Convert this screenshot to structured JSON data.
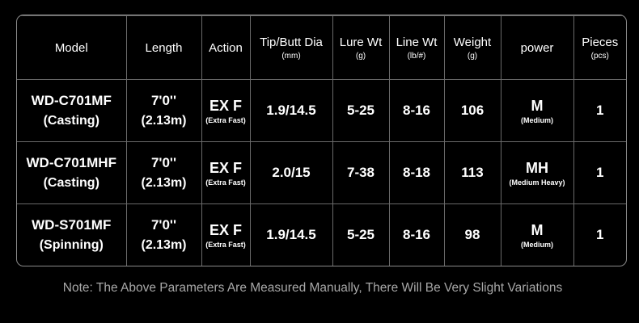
{
  "table": {
    "headers": [
      {
        "title": "Model"
      },
      {
        "title": "Length"
      },
      {
        "title": "Action"
      },
      {
        "title": "Tip/Butt Dia",
        "unit": "(mm)"
      },
      {
        "title": "Lure Wt",
        "unit": "(g)"
      },
      {
        "title": "Line Wt",
        "unit": "(lb/#)"
      },
      {
        "title": "Weight",
        "unit": "(g)"
      },
      {
        "title": "power"
      },
      {
        "title": "Pieces",
        "unit": "(pcs)"
      }
    ],
    "rows": [
      [
        {
          "text": "WD-C701MF",
          "sub": "(Casting)"
        },
        {
          "text": "7'0''",
          "sub": "(2.13m)"
        },
        {
          "text": "EX F",
          "sub": "(Extra Fast)"
        },
        {
          "text": "1.9/14.5"
        },
        {
          "text": "5-25"
        },
        {
          "text": "8-16"
        },
        {
          "text": "106"
        },
        {
          "text": "M",
          "sub": "(Medium)"
        },
        {
          "text": "1"
        }
      ],
      [
        {
          "text": "WD-C701MHF",
          "sub": "(Casting)"
        },
        {
          "text": "7'0''",
          "sub": "(2.13m)"
        },
        {
          "text": "EX F",
          "sub": "(Extra Fast)"
        },
        {
          "text": "2.0/15"
        },
        {
          "text": "7-38"
        },
        {
          "text": "8-18"
        },
        {
          "text": "113"
        },
        {
          "text": "MH",
          "sub": "(Medium Heavy)"
        },
        {
          "text": "1"
        }
      ],
      [
        {
          "text": "WD-S701MF",
          "sub": "(Spinning)"
        },
        {
          "text": "7'0''",
          "sub": "(2.13m)"
        },
        {
          "text": "EX F",
          "sub": "(Extra Fast)"
        },
        {
          "text": "1.9/14.5"
        },
        {
          "text": "5-25"
        },
        {
          "text": "8-16"
        },
        {
          "text": "98"
        },
        {
          "text": "M",
          "sub": "(Medium)"
        },
        {
          "text": "1"
        }
      ]
    ]
  },
  "note": "Note: The Above Parameters Are Measured Manually, There Will Be Very Slight Variations"
}
